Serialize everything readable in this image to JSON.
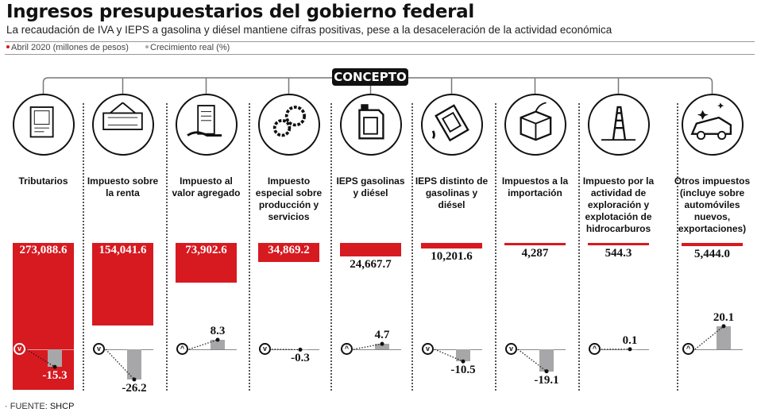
{
  "title": "Ingresos presupuestarios del gobierno federal",
  "subtitle": "La recaudación de IVA y IEPS a gasolina y diésel mantiene cifras positivas, pese a la desaceleración de la actividad económica",
  "legend": {
    "revenue": "Abril 2020 (millones de pesos)",
    "growth": "Crecimiento real (%)"
  },
  "header_label": "CONCEPTO",
  "source_label": "· FUENTE:",
  "source": "SHCP",
  "colors": {
    "revenue": "#d71920",
    "growth": "#a7a7a9"
  },
  "chart_data": {
    "type": "bar",
    "title": "Ingresos presupuestarios del gobierno federal",
    "categories": [
      "Tributarios",
      "Impuesto sobre la renta",
      "Impuesto al valor agregado",
      "Impuesto especial sobre producción y servicios",
      "IEPS gasolinas y diésel",
      "IEPS distinto de gasolinas y diésel",
      "Impuestos a la importación",
      "Impuesto por la actividad de exploración y explotación de hidrocarburos",
      "Otros impuestos (incluye sobre automóviles nuevos, exportaciones)"
    ],
    "icons": [
      "document-icon",
      "renta-sign-icon",
      "receipt-hand-icon",
      "gears-icon",
      "fuel-can-icon",
      "oil-can-icon",
      "box-export-icon",
      "oil-rig-icon",
      "car-icon"
    ],
    "series": [
      {
        "name": "Abril 2020 (millones de pesos)",
        "values": [
          273088.6,
          154041.6,
          73902.6,
          34869.2,
          24667.7,
          10201.6,
          4287,
          544.3,
          5444.0
        ],
        "labels": [
          "273,088.6",
          "154,041.6",
          "73,902.6",
          "34,869.2",
          "24,667.7",
          "10,201.6",
          "4,287",
          "544.3",
          "5,444.0"
        ]
      },
      {
        "name": "Crecimiento real (%)",
        "values": [
          -15.3,
          -26.2,
          8.3,
          -0.3,
          4.7,
          -10.5,
          -19.1,
          0.1,
          20.1
        ],
        "labels": [
          "-15.3",
          "-26.2",
          "8.3",
          "-0.3",
          "4.7",
          "-10.5",
          "-19.1",
          "0.1",
          "20.1"
        ]
      }
    ]
  }
}
